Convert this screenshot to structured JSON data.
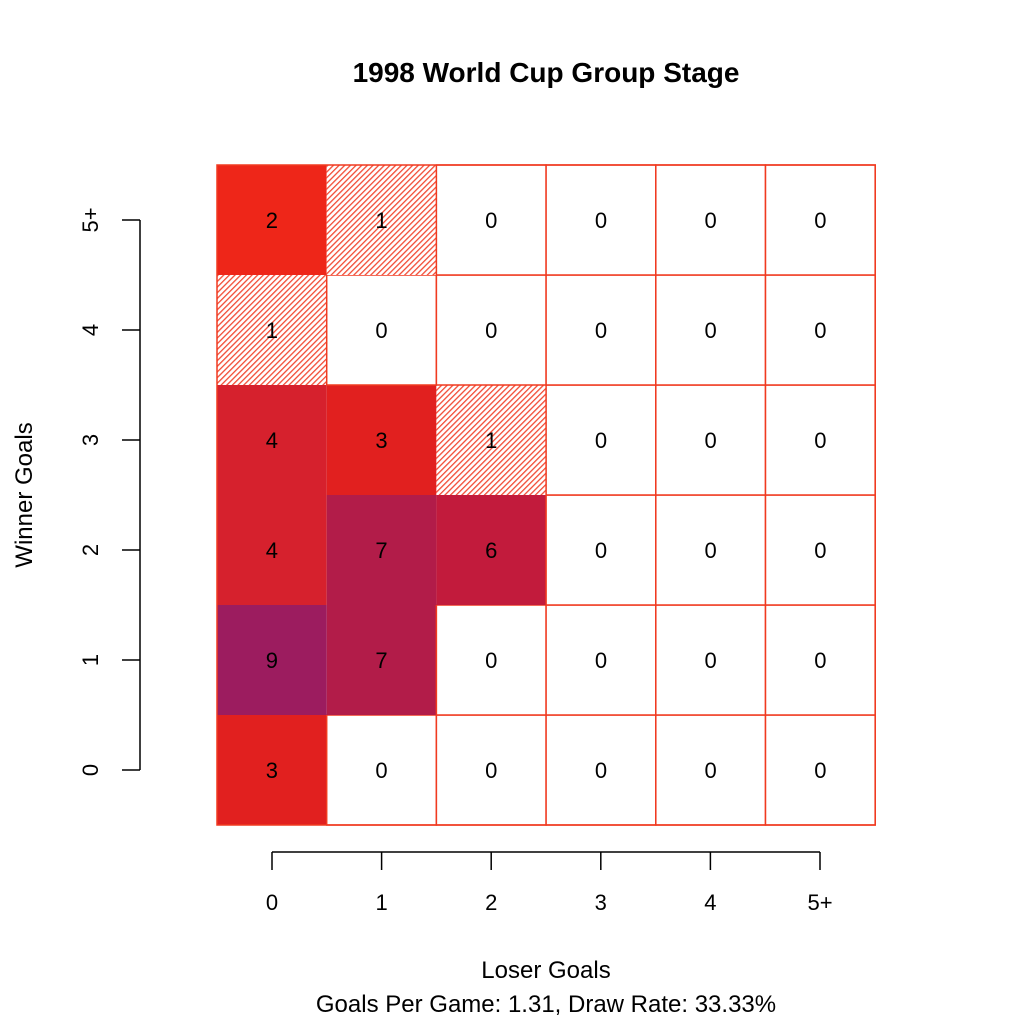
{
  "chart_data": {
    "type": "heatmap",
    "title": "1998 World Cup Group Stage",
    "xlabel": "Loser Goals",
    "ylabel": "Winner Goals",
    "subtitle": "Goals Per Game: 1.31, Draw Rate: 33.33%",
    "x_categories": [
      "0",
      "1",
      "2",
      "3",
      "4",
      "5+"
    ],
    "y_categories": [
      "0",
      "1",
      "2",
      "3",
      "4",
      "5+"
    ],
    "values": [
      [
        3,
        0,
        0,
        0,
        0,
        0
      ],
      [
        9,
        7,
        0,
        0,
        0,
        0
      ],
      [
        4,
        7,
        6,
        0,
        0,
        0
      ],
      [
        4,
        3,
        1,
        0,
        0,
        0
      ],
      [
        1,
        0,
        0,
        0,
        0,
        0
      ],
      [
        2,
        1,
        0,
        0,
        0,
        0
      ]
    ],
    "colors": {
      "cell_border": "#f03a20",
      "zero": "#ffffff",
      "one": "#f26650",
      "hatch": "#f24a34",
      "two": "#ee2619",
      "three": "#e1201f",
      "four": "#d6212d",
      "six": "#c21b3c",
      "seven": "#b21c49",
      "nine": "#9c1c5f",
      "axis": "#000000"
    },
    "grid": false
  }
}
